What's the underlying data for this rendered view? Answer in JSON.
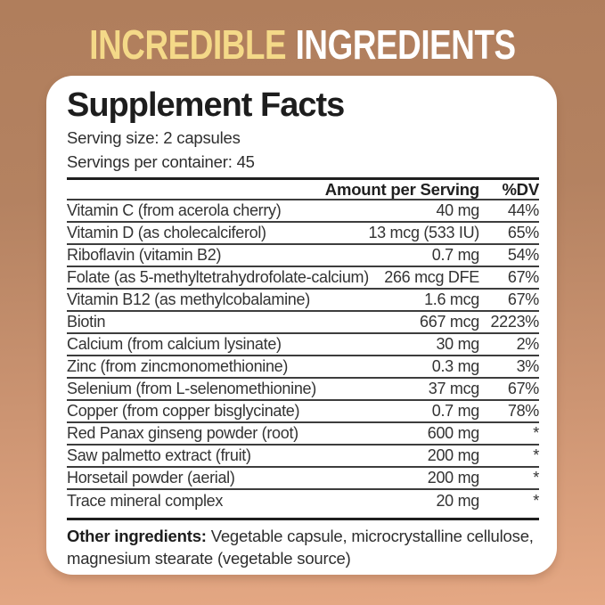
{
  "header": {
    "highlight": "INCREDIBLE",
    "rest": "INGREDIENTS"
  },
  "supplement_facts": {
    "title": "Supplement Facts",
    "serving_size": "Serving size: 2 capsules",
    "servings_per_container": "Servings per container: 45",
    "columns": {
      "amount_header": "Amount per Serving",
      "dv_header": "%DV"
    },
    "rows": [
      {
        "name": "Vitamin C (from acerola cherry)",
        "amount": "40 mg",
        "dv": "44%"
      },
      {
        "name": "Vitamin D (as cholecalciferol)",
        "amount": "13 mcg (533 IU)",
        "dv": "65%"
      },
      {
        "name": "Riboflavin (vitamin B2)",
        "amount": "0.7 mg",
        "dv": "54%"
      },
      {
        "name": "Folate (as 5-methyltetrahydrofolate-calcium)",
        "amount": "266 mcg DFE",
        "dv": "67%"
      },
      {
        "name": "Vitamin B12 (as methylcobalamine)",
        "amount": "1.6 mcg",
        "dv": "67%"
      },
      {
        "name": "Biotin",
        "amount": "667 mcg",
        "dv": "2223%"
      },
      {
        "name": "Calcium (from calcium lysinate)",
        "amount": "30 mg",
        "dv": "2%"
      },
      {
        "name": "Zinc (from zincmonomethionine)",
        "amount": "0.3 mg",
        "dv": "3%"
      },
      {
        "name": "Selenium (from L-selenomethionine)",
        "amount": "37 mcg",
        "dv": "67%"
      },
      {
        "name": "Copper (from copper bisglycinate)",
        "amount": "0.7 mg",
        "dv": "78%"
      },
      {
        "name": "Red Panax ginseng powder (root)",
        "amount": "600 mg",
        "dv": "*"
      },
      {
        "name": "Saw palmetto extract (fruit)",
        "amount": "200 mg",
        "dv": "*"
      },
      {
        "name": "Horsetail powder (aerial)",
        "amount": "200 mg",
        "dv": "*"
      },
      {
        "name": "Trace mineral complex",
        "amount": "20 mg",
        "dv": "*"
      }
    ],
    "other_ingredients": {
      "label": "Other ingredients:",
      "text": "Vegetable capsule, microcrystalline cellulose, magnesium stearate (vegetable source)"
    }
  },
  "colors": {
    "background_top": "#b07e5c",
    "background_bottom": "#e5a884",
    "headline_gold": "#f4d988",
    "headline_white": "#ffffff",
    "card_background": "#ffffff",
    "text_dark": "#1d1d1d",
    "rule_dark": "#1f1f1f"
  }
}
